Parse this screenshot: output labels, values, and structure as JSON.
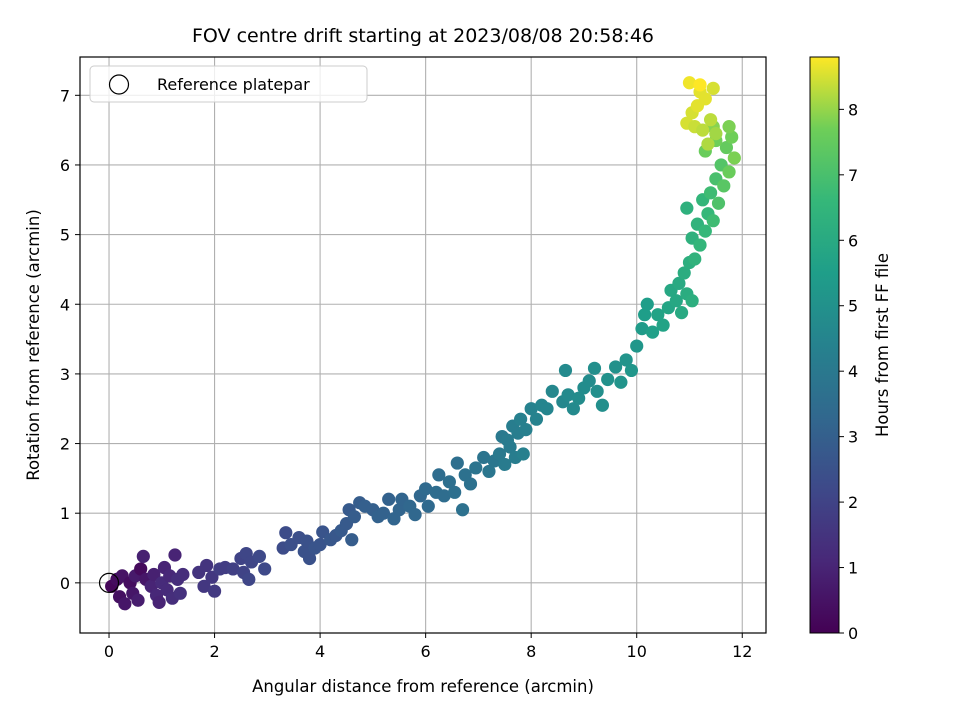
{
  "chart_data": {
    "type": "scatter",
    "title": "FOV centre drift starting at 2023/08/08 20:58:46",
    "xlabel": "Angular distance from reference (arcmin)",
    "ylabel": "Rotation from reference (arcmin)",
    "xlim": [
      -0.55,
      12.45
    ],
    "ylim": [
      -0.72,
      7.55
    ],
    "xticks": [
      0,
      2,
      4,
      6,
      8,
      10,
      12
    ],
    "xtick_labels": [
      "0",
      "2",
      "4",
      "6",
      "8",
      "10",
      "12"
    ],
    "yticks": [
      0,
      1,
      2,
      3,
      4,
      5,
      6,
      7
    ],
    "ytick_labels": [
      "0",
      "1",
      "2",
      "3",
      "4",
      "5",
      "6",
      "7"
    ],
    "grid": true,
    "legend": {
      "location": "upper-left",
      "entries": [
        {
          "label": "Reference platepar",
          "marker": "open-circle",
          "color": "#000000"
        }
      ]
    },
    "reference_point": {
      "x": 0,
      "y": 0
    },
    "colorbar": {
      "label": "Hours from first FF file",
      "colormap": "viridis",
      "range": [
        0,
        8.8
      ],
      "ticks": [
        0,
        1,
        2,
        3,
        4,
        5,
        6,
        7,
        8
      ],
      "tick_labels": [
        "0",
        "1",
        "2",
        "3",
        "4",
        "5",
        "6",
        "7",
        "8"
      ]
    },
    "series": [
      {
        "color_by": "hours",
        "points": [
          {
            "x": 0.05,
            "y": -0.05,
            "hours": 0.15
          },
          {
            "x": 0.15,
            "y": 0.05,
            "hours": 0.3
          },
          {
            "x": 0.2,
            "y": -0.2,
            "hours": 0.4
          },
          {
            "x": 0.25,
            "y": 0.1,
            "hours": 0.5
          },
          {
            "x": 0.3,
            "y": -0.3,
            "hours": 0.6
          },
          {
            "x": 0.4,
            "y": 0.0,
            "hours": 0.35
          },
          {
            "x": 0.45,
            "y": -0.15,
            "hours": 0.6
          },
          {
            "x": 0.5,
            "y": 0.1,
            "hours": 0.7
          },
          {
            "x": 0.55,
            "y": -0.25,
            "hours": 0.8
          },
          {
            "x": 0.6,
            "y": 0.2,
            "hours": 0.25
          },
          {
            "x": 0.65,
            "y": 0.38,
            "hours": 0.9
          },
          {
            "x": 0.7,
            "y": 0.05,
            "hours": 0.6
          },
          {
            "x": 0.8,
            "y": -0.05,
            "hours": 1.0
          },
          {
            "x": 0.85,
            "y": 0.12,
            "hours": 0.9
          },
          {
            "x": 0.9,
            "y": -0.18,
            "hours": 1.1
          },
          {
            "x": 0.95,
            "y": -0.28,
            "hours": 1.0
          },
          {
            "x": 1.0,
            "y": 0.0,
            "hours": 1.2
          },
          {
            "x": 1.05,
            "y": 0.22,
            "hours": 1.0
          },
          {
            "x": 1.1,
            "y": -0.1,
            "hours": 1.2
          },
          {
            "x": 1.15,
            "y": 0.1,
            "hours": 1.1
          },
          {
            "x": 1.2,
            "y": -0.22,
            "hours": 1.3
          },
          {
            "x": 1.25,
            "y": 0.4,
            "hours": 1.0
          },
          {
            "x": 1.3,
            "y": 0.05,
            "hours": 1.3
          },
          {
            "x": 1.35,
            "y": -0.15,
            "hours": 1.4
          },
          {
            "x": 1.4,
            "y": 0.12,
            "hours": 1.3
          },
          {
            "x": 1.7,
            "y": 0.15,
            "hours": 1.5
          },
          {
            "x": 1.8,
            "y": -0.05,
            "hours": 1.6
          },
          {
            "x": 1.85,
            "y": 0.25,
            "hours": 1.5
          },
          {
            "x": 1.95,
            "y": 0.08,
            "hours": 1.6
          },
          {
            "x": 2.0,
            "y": -0.12,
            "hours": 1.7
          },
          {
            "x": 2.1,
            "y": 0.2,
            "hours": 1.8
          },
          {
            "x": 2.2,
            "y": 0.22,
            "hours": 1.8
          },
          {
            "x": 2.35,
            "y": 0.2,
            "hours": 1.9
          },
          {
            "x": 2.5,
            "y": 0.35,
            "hours": 2.0
          },
          {
            "x": 2.55,
            "y": 0.15,
            "hours": 2.0
          },
          {
            "x": 2.6,
            "y": 0.42,
            "hours": 2.1
          },
          {
            "x": 2.65,
            "y": 0.05,
            "hours": 2.1
          },
          {
            "x": 2.7,
            "y": 0.3,
            "hours": 2.1
          },
          {
            "x": 2.85,
            "y": 0.38,
            "hours": 2.2
          },
          {
            "x": 2.95,
            "y": 0.2,
            "hours": 2.2
          },
          {
            "x": 3.3,
            "y": 0.5,
            "hours": 2.3
          },
          {
            "x": 3.35,
            "y": 0.72,
            "hours": 2.3
          },
          {
            "x": 3.45,
            "y": 0.55,
            "hours": 2.4
          },
          {
            "x": 3.6,
            "y": 0.65,
            "hours": 2.4
          },
          {
            "x": 3.7,
            "y": 0.45,
            "hours": 2.5
          },
          {
            "x": 3.75,
            "y": 0.6,
            "hours": 2.5
          },
          {
            "x": 3.8,
            "y": 0.35,
            "hours": 2.5
          },
          {
            "x": 3.9,
            "y": 0.5,
            "hours": 2.6
          },
          {
            "x": 4.0,
            "y": 0.55,
            "hours": 2.6
          },
          {
            "x": 4.05,
            "y": 0.73,
            "hours": 2.6
          },
          {
            "x": 4.2,
            "y": 0.62,
            "hours": 2.7
          },
          {
            "x": 4.3,
            "y": 0.68,
            "hours": 2.7
          },
          {
            "x": 4.4,
            "y": 0.75,
            "hours": 2.8
          },
          {
            "x": 4.5,
            "y": 0.85,
            "hours": 2.8
          },
          {
            "x": 4.55,
            "y": 1.05,
            "hours": 2.8
          },
          {
            "x": 4.6,
            "y": 0.62,
            "hours": 2.9
          },
          {
            "x": 4.65,
            "y": 0.95,
            "hours": 2.9
          },
          {
            "x": 4.75,
            "y": 1.15,
            "hours": 2.9
          },
          {
            "x": 4.85,
            "y": 1.1,
            "hours": 3.0
          },
          {
            "x": 5.0,
            "y": 1.05,
            "hours": 3.0
          },
          {
            "x": 5.1,
            "y": 0.95,
            "hours": 3.1
          },
          {
            "x": 5.2,
            "y": 1.0,
            "hours": 3.1
          },
          {
            "x": 5.3,
            "y": 1.2,
            "hours": 3.1
          },
          {
            "x": 5.4,
            "y": 0.92,
            "hours": 3.2
          },
          {
            "x": 5.5,
            "y": 1.05,
            "hours": 3.2
          },
          {
            "x": 5.55,
            "y": 1.2,
            "hours": 3.2
          },
          {
            "x": 5.7,
            "y": 1.1,
            "hours": 3.3
          },
          {
            "x": 5.8,
            "y": 0.98,
            "hours": 3.3
          },
          {
            "x": 5.9,
            "y": 1.25,
            "hours": 3.3
          },
          {
            "x": 6.0,
            "y": 1.35,
            "hours": 3.4
          },
          {
            "x": 6.05,
            "y": 1.1,
            "hours": 3.4
          },
          {
            "x": 6.2,
            "y": 1.3,
            "hours": 3.5
          },
          {
            "x": 6.25,
            "y": 1.55,
            "hours": 3.5
          },
          {
            "x": 6.35,
            "y": 1.25,
            "hours": 3.5
          },
          {
            "x": 6.45,
            "y": 1.45,
            "hours": 3.6
          },
          {
            "x": 6.55,
            "y": 1.3,
            "hours": 3.6
          },
          {
            "x": 6.6,
            "y": 1.72,
            "hours": 3.6
          },
          {
            "x": 6.7,
            "y": 1.05,
            "hours": 3.7
          },
          {
            "x": 6.75,
            "y": 1.55,
            "hours": 3.7
          },
          {
            "x": 6.85,
            "y": 1.42,
            "hours": 3.7
          },
          {
            "x": 6.95,
            "y": 1.65,
            "hours": 3.8
          },
          {
            "x": 7.1,
            "y": 1.8,
            "hours": 3.8
          },
          {
            "x": 7.2,
            "y": 1.6,
            "hours": 3.9
          },
          {
            "x": 7.3,
            "y": 1.75,
            "hours": 3.9
          },
          {
            "x": 7.4,
            "y": 1.85,
            "hours": 4.0
          },
          {
            "x": 7.45,
            "y": 2.1,
            "hours": 4.0
          },
          {
            "x": 7.5,
            "y": 1.7,
            "hours": 4.1
          },
          {
            "x": 7.55,
            "y": 2.05,
            "hours": 4.1
          },
          {
            "x": 7.6,
            "y": 1.95,
            "hours": 4.1
          },
          {
            "x": 7.65,
            "y": 2.25,
            "hours": 4.2
          },
          {
            "x": 7.7,
            "y": 1.8,
            "hours": 4.2
          },
          {
            "x": 7.75,
            "y": 2.15,
            "hours": 4.2
          },
          {
            "x": 7.8,
            "y": 2.35,
            "hours": 4.3
          },
          {
            "x": 7.85,
            "y": 1.85,
            "hours": 4.3
          },
          {
            "x": 7.9,
            "y": 2.2,
            "hours": 4.3
          },
          {
            "x": 8.0,
            "y": 2.5,
            "hours": 4.4
          },
          {
            "x": 8.1,
            "y": 2.35,
            "hours": 4.4
          },
          {
            "x": 8.2,
            "y": 2.55,
            "hours": 4.5
          },
          {
            "x": 8.3,
            "y": 2.5,
            "hours": 4.5
          },
          {
            "x": 8.4,
            "y": 2.75,
            "hours": 4.6
          },
          {
            "x": 8.6,
            "y": 2.6,
            "hours": 4.6
          },
          {
            "x": 8.65,
            "y": 3.05,
            "hours": 4.7
          },
          {
            "x": 8.7,
            "y": 2.7,
            "hours": 4.7
          },
          {
            "x": 8.8,
            "y": 2.5,
            "hours": 4.7
          },
          {
            "x": 8.9,
            "y": 2.65,
            "hours": 4.8
          },
          {
            "x": 9.0,
            "y": 2.8,
            "hours": 4.8
          },
          {
            "x": 9.1,
            "y": 2.9,
            "hours": 4.8
          },
          {
            "x": 9.2,
            "y": 3.08,
            "hours": 4.9
          },
          {
            "x": 9.25,
            "y": 2.75,
            "hours": 4.9
          },
          {
            "x": 9.35,
            "y": 2.55,
            "hours": 4.9
          },
          {
            "x": 9.45,
            "y": 2.92,
            "hours": 5.0
          },
          {
            "x": 9.6,
            "y": 3.1,
            "hours": 5.0
          },
          {
            "x": 9.7,
            "y": 2.88,
            "hours": 5.1
          },
          {
            "x": 9.8,
            "y": 3.2,
            "hours": 5.1
          },
          {
            "x": 9.9,
            "y": 3.05,
            "hours": 5.2
          },
          {
            "x": 10.0,
            "y": 3.4,
            "hours": 5.2
          },
          {
            "x": 10.1,
            "y": 3.65,
            "hours": 5.4
          },
          {
            "x": 10.15,
            "y": 3.85,
            "hours": 5.5
          },
          {
            "x": 10.2,
            "y": 4.0,
            "hours": 5.5
          },
          {
            "x": 10.3,
            "y": 3.6,
            "hours": 5.6
          },
          {
            "x": 10.4,
            "y": 3.85,
            "hours": 5.7
          },
          {
            "x": 10.5,
            "y": 3.7,
            "hours": 5.7
          },
          {
            "x": 10.6,
            "y": 3.95,
            "hours": 5.8
          },
          {
            "x": 10.65,
            "y": 4.2,
            "hours": 5.9
          },
          {
            "x": 10.75,
            "y": 4.05,
            "hours": 5.9
          },
          {
            "x": 10.8,
            "y": 4.3,
            "hours": 6.0
          },
          {
            "x": 10.85,
            "y": 3.88,
            "hours": 6.0
          },
          {
            "x": 10.9,
            "y": 4.45,
            "hours": 6.1
          },
          {
            "x": 10.95,
            "y": 4.15,
            "hours": 6.1
          },
          {
            "x": 11.0,
            "y": 4.6,
            "hours": 6.2
          },
          {
            "x": 11.05,
            "y": 4.05,
            "hours": 6.2
          },
          {
            "x": 10.95,
            "y": 5.38,
            "hours": 6.3
          },
          {
            "x": 11.05,
            "y": 4.95,
            "hours": 6.3
          },
          {
            "x": 11.1,
            "y": 4.65,
            "hours": 6.4
          },
          {
            "x": 11.15,
            "y": 5.15,
            "hours": 6.4
          },
          {
            "x": 11.2,
            "y": 4.85,
            "hours": 6.5
          },
          {
            "x": 11.25,
            "y": 5.5,
            "hours": 6.5
          },
          {
            "x": 11.3,
            "y": 5.05,
            "hours": 6.6
          },
          {
            "x": 11.35,
            "y": 5.3,
            "hours": 6.6
          },
          {
            "x": 11.4,
            "y": 5.6,
            "hours": 6.8
          },
          {
            "x": 11.45,
            "y": 5.2,
            "hours": 6.8
          },
          {
            "x": 11.5,
            "y": 5.8,
            "hours": 7.0
          },
          {
            "x": 11.55,
            "y": 5.45,
            "hours": 7.1
          },
          {
            "x": 11.6,
            "y": 6.0,
            "hours": 7.2
          },
          {
            "x": 11.65,
            "y": 5.7,
            "hours": 7.3
          },
          {
            "x": 11.7,
            "y": 6.25,
            "hours": 7.5
          },
          {
            "x": 11.75,
            "y": 5.9,
            "hours": 7.6
          },
          {
            "x": 11.8,
            "y": 6.4,
            "hours": 7.7
          },
          {
            "x": 11.85,
            "y": 6.1,
            "hours": 7.8
          },
          {
            "x": 11.5,
            "y": 6.35,
            "hours": 7.7
          },
          {
            "x": 11.3,
            "y": 6.2,
            "hours": 7.6
          },
          {
            "x": 11.45,
            "y": 6.55,
            "hours": 7.9
          },
          {
            "x": 11.75,
            "y": 6.55,
            "hours": 7.8
          },
          {
            "x": 10.95,
            "y": 6.6,
            "hours": 8.5
          },
          {
            "x": 11.0,
            "y": 7.18,
            "hours": 8.7
          },
          {
            "x": 11.05,
            "y": 6.75,
            "hours": 8.5
          },
          {
            "x": 11.1,
            "y": 6.55,
            "hours": 8.4
          },
          {
            "x": 11.15,
            "y": 6.85,
            "hours": 8.6
          },
          {
            "x": 11.2,
            "y": 7.05,
            "hours": 8.6
          },
          {
            "x": 11.25,
            "y": 6.5,
            "hours": 8.3
          },
          {
            "x": 11.3,
            "y": 6.95,
            "hours": 8.6
          },
          {
            "x": 11.35,
            "y": 6.3,
            "hours": 8.2
          },
          {
            "x": 11.4,
            "y": 6.65,
            "hours": 8.3
          },
          {
            "x": 11.45,
            "y": 7.1,
            "hours": 8.5
          },
          {
            "x": 11.2,
            "y": 7.15,
            "hours": 8.8
          },
          {
            "x": 11.5,
            "y": 6.45,
            "hours": 8.1
          }
        ]
      }
    ]
  }
}
